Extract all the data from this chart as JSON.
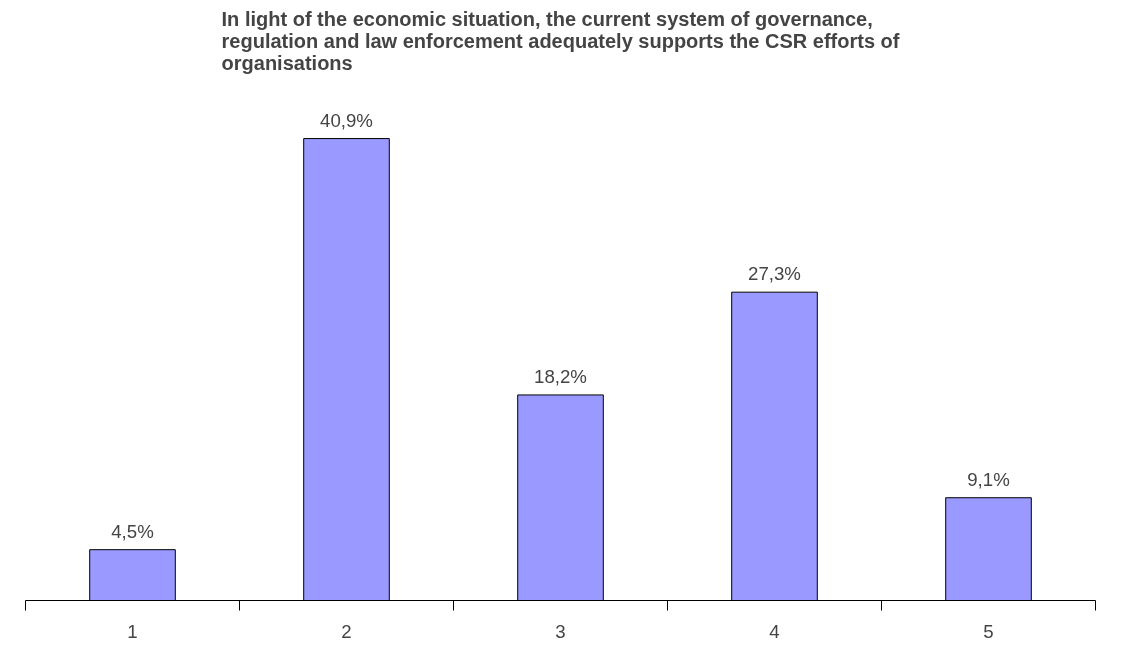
{
  "chart_data": {
    "type": "bar",
    "title": "In light of the economic situation, the current system of governance, regulation and law enforcement adequately supports the CSR efforts of organisations",
    "categories": [
      "1",
      "2",
      "3",
      "4",
      "5"
    ],
    "values": [
      4.5,
      40.9,
      18.2,
      27.3,
      9.1
    ],
    "value_labels": [
      "4,5%",
      "40,9%",
      "18,2%",
      "27,3%",
      "9,1%"
    ],
    "color": "#9999ff"
  }
}
